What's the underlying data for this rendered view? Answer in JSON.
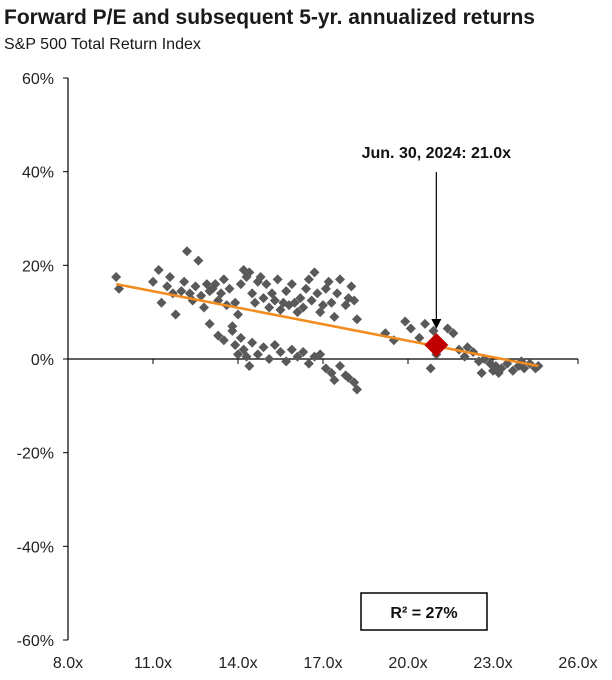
{
  "chart_data": {
    "type": "scatter",
    "title": "Forward P/E and subsequent 5-yr. annualized returns",
    "subtitle": "S&P 500 Total Return Index",
    "xlabel": "",
    "ylabel": "",
    "xlim": [
      8,
      26
    ],
    "ylim": [
      -60,
      60
    ],
    "x_ticks": [
      8,
      11,
      14,
      17,
      20,
      23,
      26
    ],
    "x_tick_labels": [
      "8.0x",
      "11.0x",
      "14.0x",
      "17.0x",
      "20.0x",
      "23.0x",
      "26.0x"
    ],
    "y_ticks": [
      60,
      40,
      20,
      0,
      -20,
      -40,
      -60
    ],
    "y_tick_labels": [
      "60%",
      "40%",
      "20%",
      "0%",
      "-20%",
      "-40%",
      "-60%"
    ],
    "grid": false,
    "colors": {
      "points": "#595959",
      "trend": "#f28c1e",
      "highlight": "#c00000"
    },
    "series": [
      {
        "points": [
          [
            9.7,
            17.5
          ],
          [
            9.8,
            15.0
          ],
          [
            11.0,
            16.5
          ],
          [
            11.2,
            19.0
          ],
          [
            11.3,
            12.0
          ],
          [
            11.5,
            15.5
          ],
          [
            11.6,
            17.5
          ],
          [
            11.7,
            14.0
          ],
          [
            11.8,
            9.5
          ],
          [
            12.0,
            14.5
          ],
          [
            12.1,
            16.5
          ],
          [
            12.2,
            23.0
          ],
          [
            12.3,
            14.0
          ],
          [
            12.4,
            12.5
          ],
          [
            12.5,
            15.5
          ],
          [
            12.6,
            21.0
          ],
          [
            12.7,
            13.5
          ],
          [
            12.8,
            11.0
          ],
          [
            12.9,
            16.0
          ],
          [
            13.0,
            14.5
          ],
          [
            13.1,
            15.0
          ],
          [
            13.2,
            16.0
          ],
          [
            13.3,
            12.5
          ],
          [
            13.4,
            14.0
          ],
          [
            13.5,
            17.0
          ],
          [
            13.6,
            11.5
          ],
          [
            13.7,
            15.0
          ],
          [
            13.8,
            7.0
          ],
          [
            13.9,
            12.0
          ],
          [
            14.0,
            9.5
          ],
          [
            14.1,
            16.0
          ],
          [
            14.2,
            19.0
          ],
          [
            14.3,
            17.5
          ],
          [
            14.4,
            18.5
          ],
          [
            14.5,
            14.0
          ],
          [
            14.6,
            12.0
          ],
          [
            14.7,
            16.5
          ],
          [
            14.8,
            17.5
          ],
          [
            14.9,
            13.0
          ],
          [
            15.0,
            16.0
          ],
          [
            15.1,
            11.0
          ],
          [
            15.2,
            14.0
          ],
          [
            15.3,
            12.5
          ],
          [
            15.4,
            17.0
          ],
          [
            15.5,
            10.5
          ],
          [
            15.6,
            12.0
          ],
          [
            15.7,
            14.5
          ],
          [
            15.8,
            11.5
          ],
          [
            15.9,
            16.0
          ],
          [
            16.0,
            12.0
          ],
          [
            16.1,
            10.0
          ],
          [
            16.2,
            13.0
          ],
          [
            16.3,
            11.0
          ],
          [
            16.4,
            15.0
          ],
          [
            16.5,
            17.0
          ],
          [
            16.6,
            12.5
          ],
          [
            16.7,
            18.5
          ],
          [
            16.8,
            14.0
          ],
          [
            16.9,
            10.0
          ],
          [
            17.0,
            11.5
          ],
          [
            17.1,
            15.0
          ],
          [
            17.2,
            16.5
          ],
          [
            17.3,
            12.0
          ],
          [
            17.4,
            9.0
          ],
          [
            17.5,
            14.0
          ],
          [
            17.6,
            17.0
          ],
          [
            17.8,
            11.5
          ],
          [
            17.9,
            13.0
          ],
          [
            18.0,
            15.5
          ],
          [
            18.1,
            12.5
          ],
          [
            18.2,
            8.5
          ],
          [
            13.8,
            6.0
          ],
          [
            13.9,
            3.0
          ],
          [
            14.0,
            1.0
          ],
          [
            14.1,
            4.5
          ],
          [
            14.2,
            2.0
          ],
          [
            14.3,
            0.5
          ],
          [
            14.4,
            -1.5
          ],
          [
            14.5,
            3.5
          ],
          [
            14.7,
            1.0
          ],
          [
            14.9,
            2.5
          ],
          [
            15.1,
            0.0
          ],
          [
            15.3,
            3.0
          ],
          [
            15.5,
            1.5
          ],
          [
            15.7,
            -0.5
          ],
          [
            15.9,
            2.0
          ],
          [
            16.1,
            0.5
          ],
          [
            16.3,
            1.5
          ],
          [
            16.5,
            -1.0
          ],
          [
            16.7,
            0.5
          ],
          [
            16.9,
            1.0
          ],
          [
            17.1,
            -2.0
          ],
          [
            17.3,
            -3.0
          ],
          [
            17.6,
            -1.5
          ],
          [
            17.9,
            -4.0
          ],
          [
            18.1,
            -5.0
          ],
          [
            18.2,
            -6.5
          ],
          [
            17.8,
            -3.5
          ],
          [
            17.4,
            -4.5
          ],
          [
            13.5,
            4.0
          ],
          [
            13.0,
            7.5
          ],
          [
            13.3,
            5.0
          ],
          [
            19.2,
            5.5
          ],
          [
            19.5,
            4.0
          ],
          [
            19.9,
            8.0
          ],
          [
            20.1,
            6.5
          ],
          [
            20.4,
            4.5
          ],
          [
            20.6,
            7.5
          ],
          [
            20.8,
            -2.0
          ],
          [
            20.9,
            6.0
          ],
          [
            21.2,
            3.0
          ],
          [
            21.4,
            6.5
          ],
          [
            21.6,
            5.5
          ],
          [
            21.8,
            2.0
          ],
          [
            22.0,
            0.5
          ],
          [
            22.3,
            1.5
          ],
          [
            22.5,
            -0.5
          ],
          [
            22.1,
            2.5
          ],
          [
            22.7,
            0.0
          ],
          [
            22.9,
            -1.0
          ],
          [
            23.0,
            -2.5
          ],
          [
            23.1,
            -1.5
          ],
          [
            23.3,
            -2.0
          ],
          [
            23.5,
            -1.0
          ],
          [
            23.7,
            -2.5
          ],
          [
            23.9,
            -1.5
          ],
          [
            24.1,
            -2.0
          ],
          [
            24.3,
            -1.0
          ],
          [
            24.5,
            -2.0
          ],
          [
            24.6,
            -1.5
          ],
          [
            22.6,
            -3.0
          ],
          [
            23.2,
            -3.0
          ],
          [
            24.0,
            -0.5
          ],
          [
            21.0,
            1.0
          ]
        ]
      }
    ],
    "trendline": {
      "x": [
        9.7,
        24.6
      ],
      "y": [
        16.0,
        -1.5
      ]
    },
    "highlight": {
      "x": 21.0,
      "y": 3.0,
      "label": "Jun. 30, 2024: 21.0x"
    },
    "r_squared_label": "R²  = 27%"
  }
}
